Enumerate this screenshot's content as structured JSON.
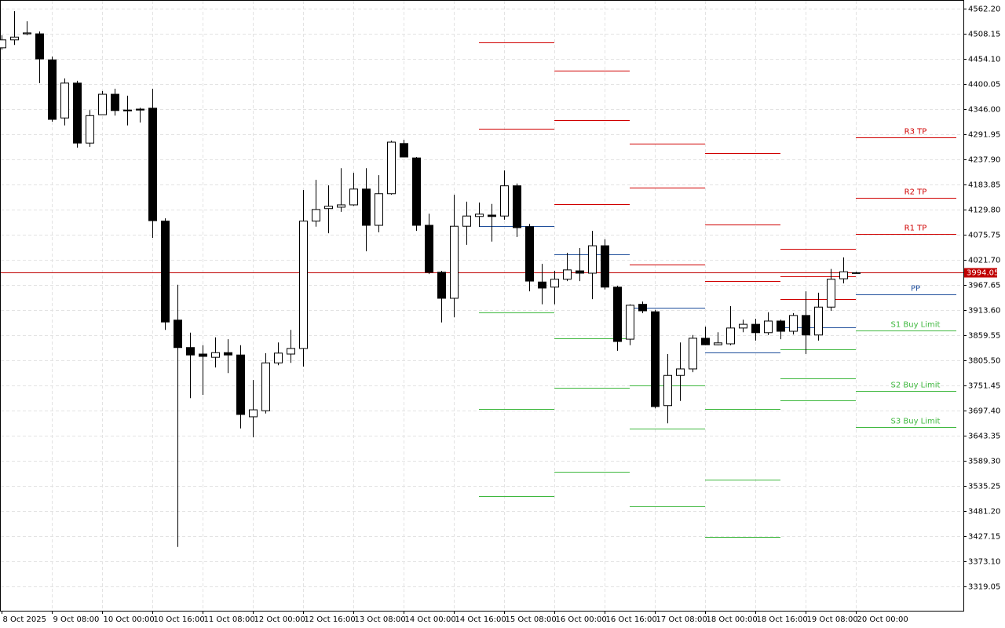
{
  "chart_data": {
    "type": "candlestick",
    "categories": [
      "8 Oct 2025",
      null,
      null,
      null,
      "9 Oct 08:00",
      null,
      null,
      null,
      "10 Oct 00:00",
      null,
      null,
      null,
      "10 Oct 16:00",
      null,
      null,
      null,
      "11 Oct 08:00",
      null,
      null,
      null,
      "12 Oct 00:00",
      null,
      null,
      null,
      "12 Oct 16:00",
      null,
      null,
      null,
      "13 Oct 08:00",
      null,
      null,
      null,
      "14 Oct 00:00",
      null,
      null,
      null,
      "14 Oct 16:00",
      null,
      null,
      null,
      "15 Oct 08:00",
      null,
      null,
      null,
      "16 Oct 00:00",
      null,
      null,
      null,
      "16 Oct 16:00",
      null,
      null,
      null,
      "17 Oct 08:00",
      null,
      null,
      null,
      "18 Oct 00:00",
      null,
      null,
      null,
      "18 Oct 16:00",
      null,
      null,
      null,
      "19 Oct 08:00",
      null,
      null,
      null,
      "20 Oct 00:00"
    ],
    "open": [
      4478,
      4495,
      4508,
      4508,
      4452,
      4327,
      4402,
      4273,
      4334,
      4378,
      4344,
      4346,
      4348,
      4105,
      3892,
      3833,
      3819,
      3812,
      3822,
      3817,
      3684,
      3697,
      3800,
      3819,
      3831,
      4105,
      4132,
      4135,
      4140,
      4174,
      4096,
      4164,
      4272,
      4241,
      4096,
      3995,
      3939,
      4094,
      4115,
      4118,
      4116,
      4181,
      4093,
      3974,
      3963,
      3980,
      3998,
      3993,
      4052,
      3963,
      3851,
      3926,
      3910,
      3708,
      3773,
      3787,
      3853,
      3839,
      3841,
      3875,
      3883,
      3865,
      3890,
      3868,
      3902,
      3860,
      3920,
      3981,
      3993
    ],
    "high": [
      4505,
      4557,
      4535,
      4513,
      4459,
      4412,
      4407,
      4344,
      4385,
      4390,
      4375,
      4349,
      4390,
      4111,
      3968,
      3865,
      3838,
      3855,
      3851,
      3838,
      3763,
      3821,
      3844,
      3871,
      4172,
      4194,
      4182,
      4219,
      4209,
      4219,
      4204,
      4278,
      4280,
      4243,
      4121,
      3998,
      4162,
      4147,
      4145,
      4142,
      4214,
      4186,
      4099,
      4013,
      3998,
      4037,
      4047,
      4084,
      4066,
      3966,
      3926,
      3932,
      3914,
      3819,
      3844,
      3860,
      3878,
      3866,
      3922,
      3893,
      3895,
      3909,
      3893,
      3907,
      3954,
      3951,
      4002,
      4027,
      3996
    ],
    "low": [
      4474,
      4484,
      4505,
      4402,
      4319,
      4311,
      4263,
      4265,
      4334,
      4332,
      4311,
      4317,
      4069,
      3871,
      3404,
      3724,
      3731,
      3790,
      3778,
      3659,
      3640,
      3691,
      3795,
      3800,
      3792,
      4093,
      4079,
      4125,
      4138,
      4040,
      4081,
      4162,
      4243,
      4084,
      3991,
      3887,
      3898,
      4054,
      4093,
      4061,
      4108,
      4071,
      3954,
      3926,
      3926,
      3976,
      3976,
      3937,
      3958,
      3826,
      3838,
      3907,
      3702,
      3670,
      3718,
      3780,
      3838,
      3838,
      3838,
      3866,
      3848,
      3860,
      3851,
      3861,
      3819,
      3848,
      3912,
      3971,
      3993
    ],
    "close": [
      4495,
      4501,
      4510,
      4454,
      4324,
      4402,
      4273,
      4332,
      4378,
      4343,
      4343,
      4344,
      4106,
      3888,
      3833,
      3817,
      3814,
      3822,
      3817,
      3689,
      3699,
      3800,
      3821,
      3831,
      4105,
      4130,
      4137,
      4140,
      4174,
      4096,
      4164,
      4275,
      4243,
      4096,
      3995,
      3939,
      4094,
      4116,
      4120,
      4115,
      4181,
      4091,
      3976,
      3961,
      3980,
      4000,
      3993,
      4052,
      3963,
      3846,
      3924,
      3912,
      3706,
      3773,
      3787,
      3853,
      3839,
      3843,
      3875,
      3883,
      3865,
      3890,
      3868,
      3902,
      3860,
      3920,
      3980,
      3996,
      3994.05
    ],
    "up_color": "#ffffff",
    "down_color": "#000000",
    "ylim": [
      3266.7,
      4580.8
    ],
    "yticks": [
      {
        "value": 4562.2,
        "label": "4562.20"
      },
      {
        "value": 4508.15,
        "label": "4508.15"
      },
      {
        "value": 4454.1,
        "label": "4454.10"
      },
      {
        "value": 4400.05,
        "label": "4400.05"
      },
      {
        "value": 4346,
        "label": "4346.00"
      },
      {
        "value": 4291.95,
        "label": "4291.95"
      },
      {
        "value": 4237.9,
        "label": "4237.90"
      },
      {
        "value": 4183.85,
        "label": "4183.85"
      },
      {
        "value": 4129.8,
        "label": "4129.80"
      },
      {
        "value": 4075.75,
        "label": "4075.75"
      },
      {
        "value": 4021.7,
        "label": "4021.70"
      },
      {
        "value": 3967.65,
        "label": "3967.65"
      },
      {
        "value": 3913.6,
        "label": "3913.60"
      },
      {
        "value": 3859.55,
        "label": "3859.55"
      },
      {
        "value": 3805.5,
        "label": "3805.50"
      },
      {
        "value": 3751.45,
        "label": "3751.45"
      },
      {
        "value": 3697.4,
        "label": "3697.40"
      },
      {
        "value": 3643.35,
        "label": "3643.35"
      },
      {
        "value": 3589.3,
        "label": "3589.30"
      },
      {
        "value": 3535.25,
        "label": "3535.25"
      },
      {
        "value": 3481.2,
        "label": "3481.20"
      },
      {
        "value": 3427.15,
        "label": "3427.15"
      },
      {
        "value": 3373.1,
        "label": "3373.10"
      },
      {
        "value": 3319.05,
        "label": "3319.05"
      }
    ],
    "grid": true,
    "current_price": {
      "value": 3994.05,
      "label": "3994.05",
      "color": "#c00000"
    },
    "levels": [
      {
        "name": "R3 TP",
        "color": "#d00000",
        "values": [
          4490,
          4429,
          4272,
          4251,
          4045,
          4285
        ]
      },
      {
        "name": "R2 TP",
        "color": "#d00000",
        "values": [
          4304,
          4322,
          4177,
          4098,
          3986,
          4155
        ]
      },
      {
        "name": "R1 TP",
        "color": "#d00000",
        "values": [
          null,
          4142,
          4012,
          3976,
          3937,
          4077
        ]
      },
      {
        "name": "PP",
        "color": "#1f4e9b",
        "values": [
          4094,
          4034,
          3919,
          3822,
          3876,
          3947
        ]
      },
      {
        "name": "S1 Buy Limit",
        "color": "#3fb83f",
        "values": [
          3909,
          3853,
          3751,
          3701,
          3829,
          3870
        ]
      },
      {
        "name": "S2 Buy Limit",
        "color": "#3fb83f",
        "values": [
          3701,
          3746,
          3659,
          3549,
          3767,
          3740
        ]
      },
      {
        "name": "S3 Buy Limit",
        "color": "#3fb83f",
        "values": [
          3513,
          3566,
          3491,
          3426,
          3719,
          3662
        ]
      }
    ]
  }
}
